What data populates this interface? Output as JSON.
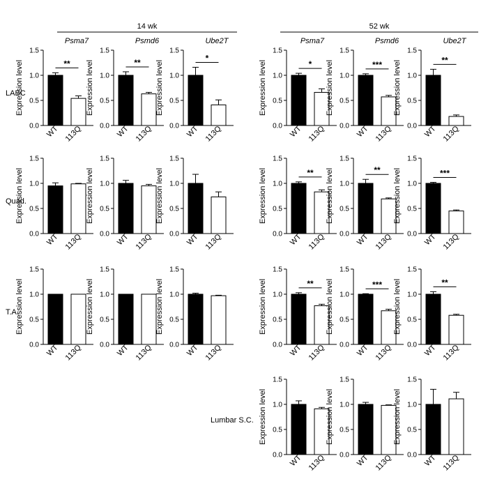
{
  "figure": {
    "group_headers": [
      "14 wk",
      "52 wk"
    ],
    "row_labels": [
      "LABC",
      "Quad.",
      "T.A.",
      "Lumbar S.C."
    ],
    "column_genes": [
      "Psma7",
      "Psmd6",
      "Ube2T",
      "Psma7",
      "Psmd6",
      "Ube2T"
    ],
    "ylabel": "Expression level",
    "categories": [
      "WT",
      "113Q"
    ],
    "bar_colors": [
      "#000000",
      "#ffffff"
    ],
    "yticks": [
      "0.0",
      "0.5",
      "1.0",
      "1.5"
    ]
  },
  "chart_data": [
    {
      "type": "bar",
      "row": "LABC",
      "age": "14 wk",
      "gene": "Psma7",
      "categories": [
        "WT",
        "113Q"
      ],
      "values": [
        1.0,
        0.54
      ],
      "errors": [
        0.05,
        0.05
      ],
      "significance": "**",
      "ylim": [
        0,
        1.5
      ]
    },
    {
      "type": "bar",
      "row": "LABC",
      "age": "14 wk",
      "gene": "Psmd6",
      "categories": [
        "WT",
        "113Q"
      ],
      "values": [
        1.0,
        0.63
      ],
      "errors": [
        0.07,
        0.03
      ],
      "significance": "**",
      "ylim": [
        0,
        1.5
      ]
    },
    {
      "type": "bar",
      "row": "LABC",
      "age": "14 wk",
      "gene": "Ube2T",
      "categories": [
        "WT",
        "113Q"
      ],
      "values": [
        1.0,
        0.41
      ],
      "errors": [
        0.16,
        0.1
      ],
      "significance": "*",
      "ylim": [
        0,
        1.5
      ]
    },
    {
      "type": "bar",
      "row": "LABC",
      "age": "52 wk",
      "gene": "Psma7",
      "categories": [
        "WT",
        "113Q"
      ],
      "values": [
        1.0,
        0.66
      ],
      "errors": [
        0.04,
        0.07
      ],
      "significance": "*",
      "ylim": [
        0,
        1.5
      ]
    },
    {
      "type": "bar",
      "row": "LABC",
      "age": "52 wk",
      "gene": "Psmd6",
      "categories": [
        "WT",
        "113Q"
      ],
      "values": [
        1.0,
        0.57
      ],
      "errors": [
        0.03,
        0.03
      ],
      "significance": "***",
      "ylim": [
        0,
        1.5
      ]
    },
    {
      "type": "bar",
      "row": "LABC",
      "age": "52 wk",
      "gene": "Ube2T",
      "categories": [
        "WT",
        "113Q"
      ],
      "values": [
        1.0,
        0.18
      ],
      "errors": [
        0.12,
        0.03
      ],
      "significance": "**",
      "ylim": [
        0,
        1.5
      ]
    },
    {
      "type": "bar",
      "row": "Quad.",
      "age": "14 wk",
      "gene": "Psma7",
      "categories": [
        "WT",
        "113Q"
      ],
      "values": [
        0.95,
        0.99
      ],
      "errors": [
        0.06,
        0.01
      ],
      "significance": "",
      "ylim": [
        0,
        1.5
      ]
    },
    {
      "type": "bar",
      "row": "Quad.",
      "age": "14 wk",
      "gene": "Psmd6",
      "categories": [
        "WT",
        "113Q"
      ],
      "values": [
        1.0,
        0.95
      ],
      "errors": [
        0.06,
        0.03
      ],
      "significance": "",
      "ylim": [
        0,
        1.5
      ]
    },
    {
      "type": "bar",
      "row": "Quad.",
      "age": "14 wk",
      "gene": "Ube2T",
      "categories": [
        "WT",
        "113Q"
      ],
      "values": [
        1.0,
        0.73
      ],
      "errors": [
        0.18,
        0.1
      ],
      "significance": "",
      "ylim": [
        0,
        1.5
      ]
    },
    {
      "type": "bar",
      "row": "Quad.",
      "age": "52 wk",
      "gene": "Psma7",
      "categories": [
        "WT",
        "113Q"
      ],
      "values": [
        1.0,
        0.83
      ],
      "errors": [
        0.03,
        0.04
      ],
      "significance": "**",
      "ylim": [
        0,
        1.5
      ]
    },
    {
      "type": "bar",
      "row": "Quad.",
      "age": "52 wk",
      "gene": "Psmd6",
      "categories": [
        "WT",
        "113Q"
      ],
      "values": [
        1.0,
        0.69
      ],
      "errors": [
        0.08,
        0.02
      ],
      "significance": "**",
      "ylim": [
        0,
        1.5
      ]
    },
    {
      "type": "bar",
      "row": "Quad.",
      "age": "52 wk",
      "gene": "Ube2T",
      "categories": [
        "WT",
        "113Q"
      ],
      "values": [
        1.0,
        0.45
      ],
      "errors": [
        0.02,
        0.02
      ],
      "significance": "***",
      "ylim": [
        0,
        1.5
      ]
    },
    {
      "type": "bar",
      "row": "T.A.",
      "age": "14 wk",
      "gene": "Psma7",
      "categories": [
        "WT",
        "113Q"
      ],
      "values": [
        1.0,
        1.0
      ],
      "errors": [
        0.0,
        0.0
      ],
      "significance": "",
      "ylim": [
        0,
        1.5
      ]
    },
    {
      "type": "bar",
      "row": "T.A.",
      "age": "14 wk",
      "gene": "Psmd6",
      "categories": [
        "WT",
        "113Q"
      ],
      "values": [
        1.0,
        1.0
      ],
      "errors": [
        0.0,
        0.0
      ],
      "significance": "",
      "ylim": [
        0,
        1.5
      ]
    },
    {
      "type": "bar",
      "row": "T.A.",
      "age": "14 wk",
      "gene": "Ube2T",
      "categories": [
        "WT",
        "113Q"
      ],
      "values": [
        1.0,
        0.97
      ],
      "errors": [
        0.02,
        0.01
      ],
      "significance": "",
      "ylim": [
        0,
        1.5
      ]
    },
    {
      "type": "bar",
      "row": "T.A.",
      "age": "52 wk",
      "gene": "Psma7",
      "categories": [
        "WT",
        "113Q"
      ],
      "values": [
        1.0,
        0.77
      ],
      "errors": [
        0.03,
        0.03
      ],
      "significance": "**",
      "ylim": [
        0,
        1.5
      ]
    },
    {
      "type": "bar",
      "row": "T.A.",
      "age": "52 wk",
      "gene": "Psmd6",
      "categories": [
        "WT",
        "113Q"
      ],
      "values": [
        1.0,
        0.67
      ],
      "errors": [
        0.01,
        0.03
      ],
      "significance": "***",
      "ylim": [
        0,
        1.5
      ]
    },
    {
      "type": "bar",
      "row": "T.A.",
      "age": "52 wk",
      "gene": "Ube2T",
      "categories": [
        "WT",
        "113Q"
      ],
      "values": [
        1.0,
        0.58
      ],
      "errors": [
        0.05,
        0.02
      ],
      "significance": "**",
      "ylim": [
        0,
        1.5
      ]
    },
    {
      "type": "bar",
      "row": "Lumbar S.C.",
      "age": "52 wk",
      "gene": "Psma7",
      "categories": [
        "WT",
        "113Q"
      ],
      "values": [
        1.0,
        0.91
      ],
      "errors": [
        0.07,
        0.03
      ],
      "significance": "",
      "ylim": [
        0,
        1.5
      ]
    },
    {
      "type": "bar",
      "row": "Lumbar S.C.",
      "age": "52 wk",
      "gene": "Psmd6",
      "categories": [
        "WT",
        "113Q"
      ],
      "values": [
        1.0,
        0.98
      ],
      "errors": [
        0.04,
        0.01
      ],
      "significance": "",
      "ylim": [
        0,
        1.5
      ]
    },
    {
      "type": "bar",
      "row": "Lumbar S.C.",
      "age": "52 wk",
      "gene": "Ube2T",
      "categories": [
        "WT",
        "113Q"
      ],
      "values": [
        1.0,
        1.11
      ],
      "errors": [
        0.3,
        0.13
      ],
      "significance": "",
      "ylim": [
        0,
        1.5
      ]
    }
  ]
}
